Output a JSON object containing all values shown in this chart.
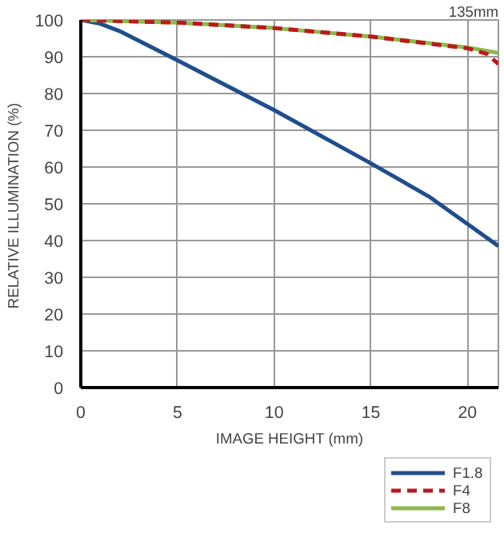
{
  "chart_data": {
    "type": "line",
    "title": "135mm",
    "xlabel": "IMAGE HEIGHT (mm)",
    "ylabel": "RELATIVE ILLUMINATION  (%)",
    "xlim": [
      0,
      21.6
    ],
    "ylim": [
      0,
      100
    ],
    "xticks": [
      0,
      5,
      10,
      15,
      20
    ],
    "yticks": [
      0,
      10,
      20,
      30,
      40,
      50,
      60,
      70,
      80,
      90,
      100
    ],
    "grid": true,
    "legend": "bottom right",
    "series": [
      {
        "name": "F1.8",
        "color": "#1f4e8c",
        "line_style": "solid",
        "x": [
          0,
          1,
          2,
          5,
          10,
          15,
          18,
          20,
          21.6
        ],
        "values": [
          100,
          99,
          97,
          89,
          75.5,
          61,
          52,
          44.5,
          38.5
        ]
      },
      {
        "name": "F4",
        "color": "#c0161e",
        "line_style": "dashed",
        "x": [
          0,
          5,
          10,
          15,
          20,
          21,
          21.6
        ],
        "values": [
          100,
          99.3,
          97.8,
          95.5,
          92.3,
          90.8,
          88
        ]
      },
      {
        "name": "F8",
        "color": "#8bbb4a",
        "line_style": "solid",
        "x": [
          0,
          5,
          10,
          15,
          20,
          21.6
        ],
        "values": [
          100,
          99.3,
          97.8,
          95.5,
          92.5,
          91
        ]
      }
    ]
  }
}
